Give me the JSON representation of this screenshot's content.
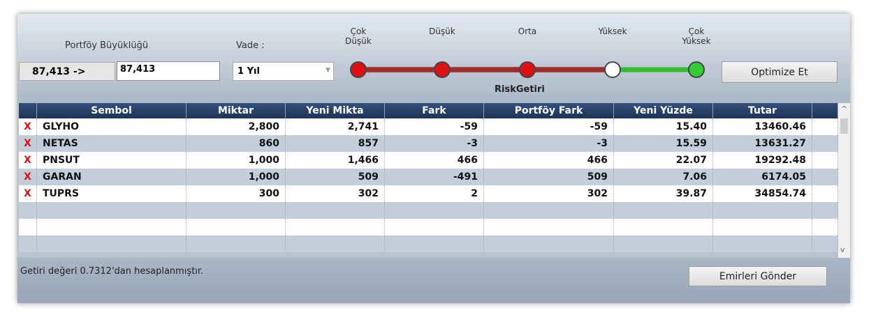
{
  "header": {
    "portfolio_label": "Portföy Büyüklüğü",
    "vade_label": "Vade :",
    "portfolio_value": "87,413 ->",
    "portfolio_input": "87,413",
    "vade_select": "1 Yıl",
    "risk_levels": [
      "Çok Düşük",
      "Düşük",
      "Orta",
      "Yüksek",
      "Çok Yüksek"
    ],
    "risk_caption": "RiskGetiri",
    "optimize_button": "Optimize Et"
  },
  "table": {
    "close_mark": "X",
    "columns": [
      "Sembol",
      "Miktar",
      "Yeni Mikta",
      "Fark",
      "Portföy Fark",
      "Yeni Yüzde",
      "Tutar"
    ],
    "rows": [
      [
        "GLYHO",
        "2,800",
        "2,741",
        "-59",
        "-59",
        "15.40",
        "13460.46"
      ],
      [
        "NETAS",
        "860",
        "857",
        "-3",
        "-3",
        "15.59",
        "13631.27"
      ],
      [
        "PNSUT",
        "1,000",
        "1,466",
        "466",
        "466",
        "22.07",
        "19292.48"
      ],
      [
        "GARAN",
        "1,000",
        "509",
        "-491",
        "509",
        "7.06",
        "6174.05"
      ],
      [
        "TUPRS",
        "300",
        "302",
        "2",
        "302",
        "39.87",
        "34854.74"
      ]
    ]
  },
  "footer": {
    "note": "Getiri değeri 0.7312'dan hesaplanmıştır.",
    "send_button": "Emirleri Gönder"
  }
}
